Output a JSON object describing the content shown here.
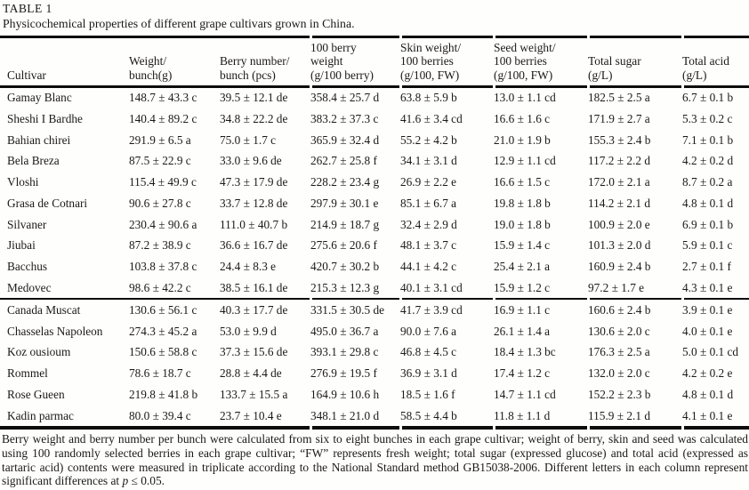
{
  "page": {
    "label": "TABLE 1",
    "caption": "Physicochemical properties of different grape cultivars grown in China."
  },
  "table": {
    "headers": [
      "Cultivar",
      "Weight/\nbunch(g)",
      "Berry number/\nbunch (pcs)",
      "100 berry\nweight\n(g/100 berry)",
      "Skin weight/\n100 berries\n(g/100, FW)",
      "Seed weight/\n100 berries\n(g/100, FW)",
      "Total sugar\n(g/L)",
      "Total acid\n(g/L)"
    ],
    "groups": [
      {
        "rows": [
          [
            "Gamay Blanc",
            "148.7 ± 43.3 c",
            "39.5 ± 12.1 de",
            "358.4 ± 25.7 d",
            "63.8 ± 5.9 b",
            "13.0 ± 1.1 cd",
            "182.5 ± 2.5 a",
            "6.7 ± 0.1 b"
          ],
          [
            "Sheshi I Bardhe",
            "140.4 ± 89.2 c",
            "34.8 ± 22.2 de",
            "383.2 ± 37.3 c",
            "41.6 ± 3.4 cd",
            "16.6 ± 1.6 c",
            "171.9 ± 2.7 a",
            "5.3 ± 0.2 c"
          ],
          [
            "Bahian chirei",
            "291.9 ± 6.5 a",
            "75.0 ± 1.7 c",
            "365.9 ± 32.4 d",
            "55.2 ± 4.2 b",
            "21.0 ± 1.9 b",
            "155.3 ± 2.4 b",
            "7.1 ± 0.1 b"
          ],
          [
            "Bela Breza",
            "87.5 ± 22.9 c",
            "33.0 ± 9.6 de",
            "262.7 ± 25.8 f",
            "34.1 ± 3.1 d",
            "12.9 ± 1.1 cd",
            "117.2 ± 2.2 d",
            "4.2 ± 0.2 d"
          ],
          [
            "Vloshi",
            "115.4 ± 49.9 c",
            "47.3 ± 17.9 de",
            "228.2 ± 23.4 g",
            "26.9 ± 2.2 e",
            "16.6 ± 1.5 c",
            "172.0 ± 2.1 a",
            "8.7 ± 0.2 a"
          ],
          [
            "Grasa de Cotnari",
            "90.6 ± 27.8 c",
            "33.7 ± 12.8 de",
            "297.9 ± 30.1 e",
            "85.1 ± 6.7 a",
            "19.8 ± 1.8 b",
            "114.2 ± 2.1 d",
            "4.8 ± 0.1 d"
          ],
          [
            "Silvaner",
            "230.4 ± 90.6 a",
            "111.0 ± 40.7 b",
            "214.9 ± 18.7 g",
            "32.4 ± 2.9 d",
            "19.0 ± 1.8 b",
            "100.9 ± 2.0 e",
            "6.9 ± 0.1 b"
          ],
          [
            "Jiubai",
            "87.2 ± 38.9 c",
            "36.6 ± 16.7 de",
            "275.6 ± 20.6 f",
            "48.1 ± 3.7 c",
            "15.9 ± 1.4 c",
            "101.3 ± 2.0 d",
            "5.9 ± 0.1 c"
          ],
          [
            "Bacchus",
            "103.8 ± 37.8 c",
            "24.4 ± 8.3 e",
            "420.7 ± 30.2 b",
            "44.1 ± 4.2 c",
            "25.4 ± 2.1 a",
            "160.9 ± 2.4 b",
            "2.7 ± 0.1 f"
          ],
          [
            "Medovec",
            "98.6 ± 42.2 c",
            "38.5 ± 16.1 de",
            "215.3 ± 12.3 g",
            "40.1 ± 3.1 cd",
            "15.9 ± 1.2 c",
            "97.2 ± 1.7 e",
            "4.3 ± 0.1 e"
          ]
        ]
      },
      {
        "rows": [
          [
            "Canada Muscat",
            "130.6 ± 56.1 c",
            "40.3 ± 17.7 de",
            "331.5 ± 30.5 de",
            "41.7 ± 3.9 cd",
            "16.9 ± 1.1 c",
            "160.6 ± 2.4 b",
            "3.9 ± 0.1 e"
          ],
          [
            "Chasselas Napoleon",
            "274.3 ± 45.2 a",
            "53.0 ± 9.9 d",
            "495.0 ± 36.7 a",
            "90.0 ± 7.6 a",
            "26.1 ± 1.4 a",
            "130.6 ± 2.0 c",
            "4.0 ± 0.1 e"
          ],
          [
            "Koz ousioum",
            "150.6 ± 58.8 c",
            "37.3 ± 15.6 de",
            "393.1 ± 29.8 c",
            "46.8 ± 4.5 c",
            "18.4 ± 1.3 bc",
            "176.3 ± 2.5 a",
            "5.0 ± 0.1 cd"
          ],
          [
            "Rommel",
            "78.6 ± 18.7 c",
            "28.8 ± 4.4 de",
            "276.9 ± 19.5 f",
            "36.9 ± 3.1 d",
            "17.4 ± 1.2 c",
            "132.0 ± 2.0 c",
            "4.2 ± 0.2 e"
          ],
          [
            "Rose Gueen",
            "219.8 ± 41.8 b",
            "133.7 ± 15.5 a",
            "164.9 ± 10.6 h",
            "18.5 ± 1.6 f",
            "14.7 ± 1.1 cd",
            "152.2 ± 2.3 b",
            "4.8 ± 0.1 d"
          ],
          [
            "Kadin parmac",
            "80.0 ± 39.4 c",
            "23.7 ± 10.4 e",
            "348.1 ± 21.0 d",
            "58.5 ± 4.4 b",
            "11.8 ± 1.1 d",
            "115.9 ± 2.1 d",
            "4.1 ± 0.1 e"
          ]
        ]
      }
    ]
  },
  "footnote": {
    "text_before_p": "Berry weight and berry number per bunch were calculated from six to eight bunches in each grape cultivar; weight of berry, skin and seed was calculated using 100 randomly selected berries in each grape cultivar; “FW” represents fresh weight; total sugar (expressed glucose) and total acid (expressed as tartaric acid) contents were measured in triplicate according to the National Standard method GB15038-2006. Different letters in each column represent significant differences at ",
    "p_symbol": "p",
    "text_after_p": " ≤ 0.05."
  }
}
